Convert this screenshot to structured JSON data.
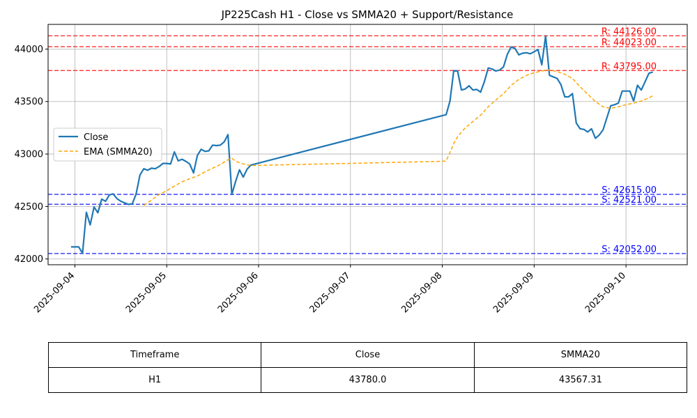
{
  "chart_data": {
    "type": "line",
    "title": "JP225Cash H1 - Close vs SMMA20 + Support/Resistance",
    "xlabel": "",
    "ylabel": "",
    "x_ticks": [
      "2025-09-04",
      "2025-09-05",
      "2025-09-06",
      "2025-09-07",
      "2025-09-08",
      "2025-09-09",
      "2025-09-10"
    ],
    "x_range": [
      "2025-09-03T17:00",
      "2025-09-10T16:00"
    ],
    "y_ticks": [
      42000,
      42500,
      43000,
      43500,
      44000
    ],
    "ylim": [
      41945,
      44235
    ],
    "grid": true,
    "legend": "center-left",
    "series": [
      {
        "name": "Close",
        "color": "#1f77b4",
        "style": "solid",
        "points": [
          [
            "2025-09-03T23:00",
            42115
          ],
          [
            "2025-09-04T00:00",
            42115
          ],
          [
            "2025-09-04T01:00",
            42115
          ],
          [
            "2025-09-04T02:00",
            42055
          ],
          [
            "2025-09-04T03:00",
            42445
          ],
          [
            "2025-09-04T04:00",
            42325
          ],
          [
            "2025-09-04T05:00",
            42495
          ],
          [
            "2025-09-04T06:00",
            42440
          ],
          [
            "2025-09-04T07:00",
            42570
          ],
          [
            "2025-09-04T08:00",
            42550
          ],
          [
            "2025-09-04T09:00",
            42610
          ],
          [
            "2025-09-04T10:00",
            42620
          ],
          [
            "2025-09-04T11:00",
            42575
          ],
          [
            "2025-09-04T12:00",
            42550
          ],
          [
            "2025-09-04T13:00",
            42535
          ],
          [
            "2025-09-04T14:00",
            42520
          ],
          [
            "2025-09-04T15:00",
            42525
          ],
          [
            "2025-09-04T16:00",
            42620
          ],
          [
            "2025-09-04T17:00",
            42800
          ],
          [
            "2025-09-04T18:00",
            42860
          ],
          [
            "2025-09-04T19:00",
            42845
          ],
          [
            "2025-09-04T20:00",
            42865
          ],
          [
            "2025-09-04T21:00",
            42860
          ],
          [
            "2025-09-04T22:00",
            42880
          ],
          [
            "2025-09-04T23:00",
            42910
          ],
          [
            "2025-09-05T00:00",
            42910
          ],
          [
            "2025-09-05T01:00",
            42905
          ],
          [
            "2025-09-05T02:00",
            43020
          ],
          [
            "2025-09-05T03:00",
            42935
          ],
          [
            "2025-09-05T04:00",
            42950
          ],
          [
            "2025-09-05T05:00",
            42930
          ],
          [
            "2025-09-05T06:00",
            42905
          ],
          [
            "2025-09-05T07:00",
            42820
          ],
          [
            "2025-09-05T08:00",
            42985
          ],
          [
            "2025-09-05T09:00",
            43045
          ],
          [
            "2025-09-05T10:00",
            43025
          ],
          [
            "2025-09-05T11:00",
            43030
          ],
          [
            "2025-09-05T12:00",
            43085
          ],
          [
            "2025-09-05T13:00",
            43080
          ],
          [
            "2025-09-05T14:00",
            43085
          ],
          [
            "2025-09-05T15:00",
            43115
          ],
          [
            "2025-09-05T16:00",
            43185
          ],
          [
            "2025-09-05T17:00",
            42615
          ],
          [
            "2025-09-05T18:00",
            42740
          ],
          [
            "2025-09-05T19:00",
            42850
          ],
          [
            "2025-09-05T20:00",
            42780
          ],
          [
            "2025-09-05T21:00",
            42855
          ],
          [
            "2025-09-05T22:00",
            42895
          ],
          [
            "2025-09-08T01:00",
            43375
          ],
          [
            "2025-09-08T02:00",
            43505
          ],
          [
            "2025-09-08T03:00",
            43795
          ],
          [
            "2025-09-08T04:00",
            43790
          ],
          [
            "2025-09-08T05:00",
            43610
          ],
          [
            "2025-09-08T06:00",
            43620
          ],
          [
            "2025-09-08T07:00",
            43650
          ],
          [
            "2025-09-08T08:00",
            43610
          ],
          [
            "2025-09-08T09:00",
            43615
          ],
          [
            "2025-09-08T10:00",
            43590
          ],
          [
            "2025-09-08T11:00",
            43690
          ],
          [
            "2025-09-08T12:00",
            43820
          ],
          [
            "2025-09-08T13:00",
            43810
          ],
          [
            "2025-09-08T14:00",
            43790
          ],
          [
            "2025-09-08T15:00",
            43800
          ],
          [
            "2025-09-08T16:00",
            43830
          ],
          [
            "2025-09-08T17:00",
            43950
          ],
          [
            "2025-09-08T18:00",
            44020
          ],
          [
            "2025-09-08T19:00",
            44005
          ],
          [
            "2025-09-08T20:00",
            43945
          ],
          [
            "2025-09-08T21:00",
            43960
          ],
          [
            "2025-09-08T22:00",
            43965
          ],
          [
            "2025-09-08T23:00",
            43955
          ],
          [
            "2025-09-09T00:00",
            43975
          ],
          [
            "2025-09-09T01:00",
            43995
          ],
          [
            "2025-09-09T02:00",
            43850
          ],
          [
            "2025-09-09T03:00",
            44125
          ],
          [
            "2025-09-09T04:00",
            43750
          ],
          [
            "2025-09-09T05:00",
            43735
          ],
          [
            "2025-09-09T06:00",
            43720
          ],
          [
            "2025-09-09T07:00",
            43660
          ],
          [
            "2025-09-09T08:00",
            43545
          ],
          [
            "2025-09-09T09:00",
            43545
          ],
          [
            "2025-09-09T10:00",
            43575
          ],
          [
            "2025-09-09T11:00",
            43295
          ],
          [
            "2025-09-09T12:00",
            43240
          ],
          [
            "2025-09-09T13:00",
            43235
          ],
          [
            "2025-09-09T14:00",
            43210
          ],
          [
            "2025-09-09T15:00",
            43240
          ],
          [
            "2025-09-09T16:00",
            43150
          ],
          [
            "2025-09-09T17:00",
            43180
          ],
          [
            "2025-09-09T18:00",
            43230
          ],
          [
            "2025-09-09T19:00",
            43345
          ],
          [
            "2025-09-09T20:00",
            43460
          ],
          [
            "2025-09-09T21:00",
            43470
          ],
          [
            "2025-09-09T22:00",
            43485
          ],
          [
            "2025-09-09T23:00",
            43600
          ],
          [
            "2025-09-10T00:00",
            43600
          ],
          [
            "2025-09-10T01:00",
            43600
          ],
          [
            "2025-09-10T02:00",
            43505
          ],
          [
            "2025-09-10T03:00",
            43655
          ],
          [
            "2025-09-10T04:00",
            43610
          ],
          [
            "2025-09-10T05:00",
            43690
          ],
          [
            "2025-09-10T06:00",
            43770
          ],
          [
            "2025-09-10T07:00",
            43780
          ]
        ]
      },
      {
        "name": "EMA (SMMA20)",
        "color": "#ffa500",
        "style": "dashed",
        "points": [
          [
            "2025-09-04T18:00",
            42510
          ],
          [
            "2025-09-04T20:00",
            42560
          ],
          [
            "2025-09-04T22:00",
            42615
          ],
          [
            "2025-09-05T00:00",
            42650
          ],
          [
            "2025-09-05T02:00",
            42695
          ],
          [
            "2025-09-05T04:00",
            42735
          ],
          [
            "2025-09-05T06:00",
            42765
          ],
          [
            "2025-09-05T08:00",
            42790
          ],
          [
            "2025-09-05T10:00",
            42830
          ],
          [
            "2025-09-05T12:00",
            42865
          ],
          [
            "2025-09-05T14:00",
            42900
          ],
          [
            "2025-09-05T16:00",
            42945
          ],
          [
            "2025-09-05T17:00",
            42960
          ],
          [
            "2025-09-05T18:00",
            42930
          ],
          [
            "2025-09-05T20:00",
            42905
          ],
          [
            "2025-09-05T22:00",
            42890
          ],
          [
            "2025-09-08T00:00",
            42930
          ],
          [
            "2025-09-08T01:00",
            42935
          ],
          [
            "2025-09-08T02:00",
            43015
          ],
          [
            "2025-09-08T03:00",
            43100
          ],
          [
            "2025-09-08T04:00",
            43165
          ],
          [
            "2025-09-08T06:00",
            43250
          ],
          [
            "2025-09-08T08:00",
            43310
          ],
          [
            "2025-09-08T10:00",
            43370
          ],
          [
            "2025-09-08T12:00",
            43450
          ],
          [
            "2025-09-08T14:00",
            43515
          ],
          [
            "2025-09-08T16:00",
            43575
          ],
          [
            "2025-09-08T18:00",
            43655
          ],
          [
            "2025-09-08T20:00",
            43710
          ],
          [
            "2025-09-08T22:00",
            43750
          ],
          [
            "2025-09-09T00:00",
            43775
          ],
          [
            "2025-09-09T02:00",
            43790
          ],
          [
            "2025-09-09T03:00",
            43800
          ],
          [
            "2025-09-09T04:00",
            43800
          ],
          [
            "2025-09-09T06:00",
            43785
          ],
          [
            "2025-09-09T08:00",
            43760
          ],
          [
            "2025-09-09T10:00",
            43720
          ],
          [
            "2025-09-09T12:00",
            43640
          ],
          [
            "2025-09-09T14:00",
            43570
          ],
          [
            "2025-09-09T16:00",
            43500
          ],
          [
            "2025-09-09T18:00",
            43450
          ],
          [
            "2025-09-09T20:00",
            43435
          ],
          [
            "2025-09-09T22:00",
            43450
          ],
          [
            "2025-09-10T00:00",
            43470
          ],
          [
            "2025-09-10T02:00",
            43485
          ],
          [
            "2025-09-10T04:00",
            43505
          ],
          [
            "2025-09-10T06:00",
            43535
          ],
          [
            "2025-09-10T07:00",
            43555
          ]
        ]
      }
    ],
    "resistance": [
      {
        "label": "R: 44126.00",
        "value": 44126.0
      },
      {
        "label": "R: 44023.00",
        "value": 44023.0
      },
      {
        "label": "R: 43795.00",
        "value": 43795.0
      }
    ],
    "support": [
      {
        "label": "S: 42615.00",
        "value": 42615.0
      },
      {
        "label": "S: 42521.00",
        "value": 42521.0
      },
      {
        "label": "S: 42052.00",
        "value": 42052.0
      }
    ],
    "colors": {
      "resistance": "#ff0000",
      "support": "#0000ff",
      "grid": "#b0b0b0"
    }
  },
  "table": {
    "headers": [
      "Timeframe",
      "Close",
      "SMMA20"
    ],
    "rows": [
      [
        "H1",
        "43780.0",
        "43567.31"
      ]
    ]
  }
}
